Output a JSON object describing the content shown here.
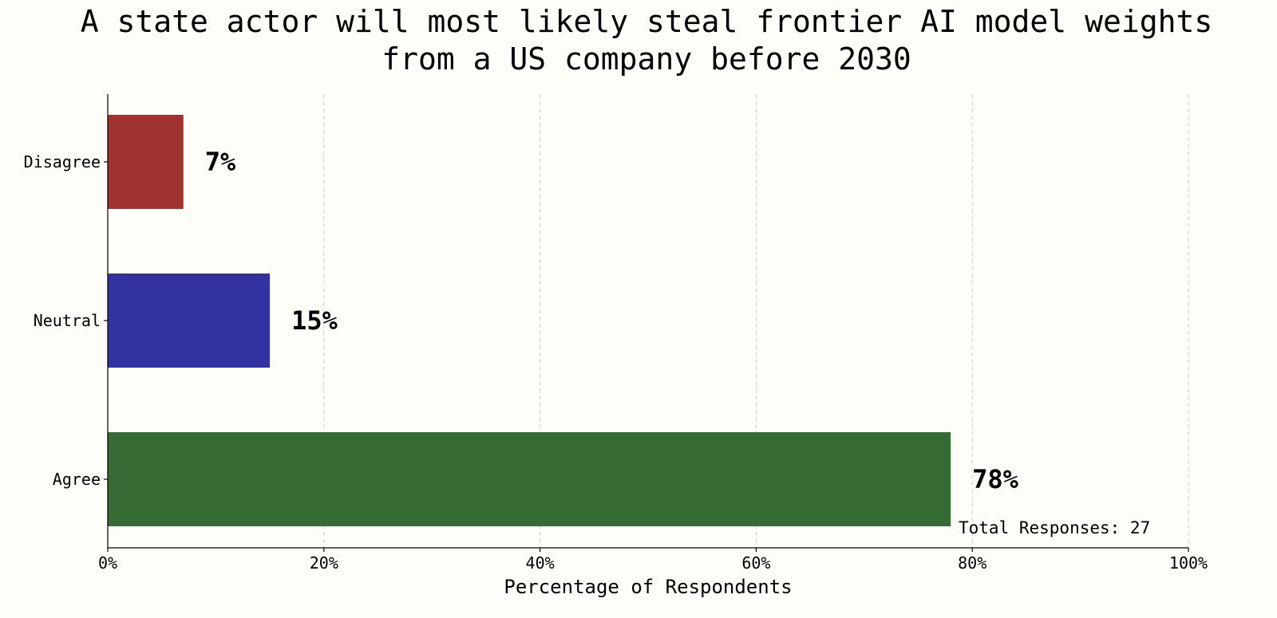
{
  "chart_data": {
    "type": "bar",
    "orientation": "horizontal",
    "title_lines": [
      "A state actor will most likely steal frontier AI model weights",
      "from a US company before 2030"
    ],
    "categories": [
      "Disagree",
      "Neutral",
      "Agree"
    ],
    "values": [
      7,
      15,
      78
    ],
    "value_labels": [
      "7%",
      "15%",
      "78%"
    ],
    "colors": [
      "#a03232",
      "#3232a0",
      "#356b35"
    ],
    "xlabel": "Percentage of Respondents",
    "ylabel": "",
    "xlim": [
      0,
      100
    ],
    "x_ticks": [
      0,
      20,
      40,
      60,
      80,
      100
    ],
    "x_tick_labels": [
      "0%",
      "20%",
      "40%",
      "60%",
      "80%",
      "100%"
    ],
    "grid": "x-dashed",
    "annotation": "Total Responses: 27"
  }
}
